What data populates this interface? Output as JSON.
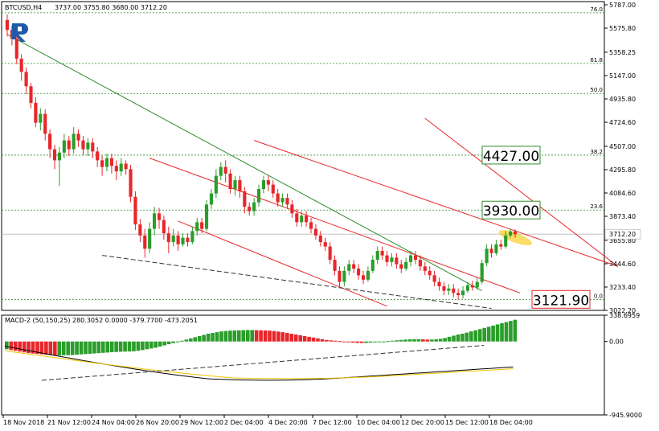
{
  "header": {
    "symbol": "BTCUSD,H4",
    "ohlc": "3737.00 3755.80 3680.00 3712.20"
  },
  "macd_header": "MACD-2 (50,150,25) 280.3052 0.0000 -379.7700 -473.2051",
  "colors": {
    "bull": "#2a9d2a",
    "bear": "#e8262a",
    "grid": "#2e8b2e",
    "channel": "#e8262a",
    "trend": "#2a8a2a",
    "support": "#333333",
    "signal": "#f2c200",
    "macd_line": "#000000",
    "price_tag_bg": "#ffffff",
    "highlight": "#f7c600",
    "logo": "#1f5aa8"
  },
  "chart_data": [
    {
      "type": "candlestick",
      "symbol": "BTCUSD",
      "timeframe": "H4",
      "ylim": [
        3022.2,
        5787.0
      ],
      "y_ticks": [
        "5787.00",
        "5575.80",
        "5358.25",
        "5147.00",
        "4935.80",
        "4724.60",
        "4507.00",
        "4295.80",
        "4084.60",
        "3873.40",
        "3655.80",
        "3444.60",
        "3233.40",
        "3022.20"
      ],
      "x_ticks": [
        "18 Nov 2018",
        "21 Nov 12:00",
        "24 Nov 04:00",
        "26 Nov 20:00",
        "29 Nov 12:00",
        "2 Dec 04:00",
        "4 Dec 20:00",
        "7 Dec 12:00",
        "10 Dec 04:00",
        "12 Dec 20:00",
        "15 Dec 12:00",
        "18 Dec 04:00"
      ],
      "fibonacci_levels": [
        {
          "label": "76.0",
          "price": 5715
        },
        {
          "label": "61.8",
          "price": 5257
        },
        {
          "label": "50.0",
          "price": 4985
        },
        {
          "label": "38.2",
          "price": 4427
        },
        {
          "label": "23.6",
          "price": 3930
        },
        {
          "label": "0.0",
          "price": 3121.9
        }
      ],
      "annotations": [
        {
          "text": "4427.00",
          "price": 4427.0,
          "style": "green"
        },
        {
          "text": "3930.00",
          "price": 3930.0,
          "style": "green"
        },
        {
          "text": "3121.90",
          "price": 3121.9,
          "style": "red"
        }
      ],
      "current_price": {
        "text": "3712.20",
        "price": 3712.2
      },
      "candles_approx": [
        [
          5650,
          5560,
          5700,
          5500
        ],
        [
          5560,
          5480,
          5600,
          5420
        ],
        [
          5480,
          5300,
          5520,
          5250
        ],
        [
          5300,
          5180,
          5340,
          5100
        ],
        [
          5180,
          5050,
          5220,
          4980
        ],
        [
          5050,
          4900,
          5080,
          4850
        ],
        [
          4900,
          4720,
          4950,
          4680
        ],
        [
          4720,
          4800,
          4850,
          4650
        ],
        [
          4800,
          4620,
          4840,
          4560
        ],
        [
          4620,
          4480,
          4660,
          4400
        ],
        [
          4480,
          4380,
          4520,
          4300
        ],
        [
          4380,
          4450,
          4500,
          4150
        ],
        [
          4450,
          4560,
          4620,
          4400
        ],
        [
          4560,
          4480,
          4600,
          4420
        ],
        [
          4480,
          4620,
          4680,
          4440
        ],
        [
          4620,
          4560,
          4660,
          4500
        ],
        [
          4560,
          4480,
          4600,
          4430
        ],
        [
          4480,
          4540,
          4580,
          4420
        ],
        [
          4540,
          4460,
          4580,
          4400
        ],
        [
          4460,
          4380,
          4500,
          4320
        ],
        [
          4380,
          4320,
          4420,
          4240
        ],
        [
          4320,
          4400,
          4440,
          4280
        ],
        [
          4400,
          4330,
          4440,
          4260
        ],
        [
          4330,
          4280,
          4380,
          4200
        ],
        [
          4280,
          4350,
          4400,
          4240
        ],
        [
          4350,
          4300,
          4380,
          4250
        ],
        [
          4300,
          4050,
          4340,
          4000
        ],
        [
          4050,
          3800,
          4100,
          3750
        ],
        [
          3800,
          3700,
          3850,
          3640
        ],
        [
          3700,
          3580,
          3760,
          3500
        ],
        [
          3580,
          3760,
          3820,
          3540
        ],
        [
          3760,
          3900,
          3960,
          3700
        ],
        [
          3900,
          3840,
          3950,
          3760
        ],
        [
          3840,
          3720,
          3880,
          3660
        ],
        [
          3720,
          3640,
          3780,
          3540
        ],
        [
          3640,
          3700,
          3760,
          3600
        ],
        [
          3700,
          3620,
          3740,
          3560
        ],
        [
          3620,
          3680,
          3720,
          3600
        ],
        [
          3680,
          3640,
          3720,
          3600
        ],
        [
          3640,
          3740,
          3780,
          3620
        ],
        [
          3740,
          3820,
          3860,
          3700
        ],
        [
          3820,
          3760,
          3860,
          3720
        ],
        [
          3760,
          3980,
          4020,
          3740
        ],
        [
          3980,
          4080,
          4120,
          3940
        ],
        [
          4080,
          4240,
          4300,
          4040
        ],
        [
          4240,
          4320,
          4360,
          4200
        ],
        [
          4320,
          4260,
          4380,
          4180
        ],
        [
          4260,
          4120,
          4300,
          4080
        ],
        [
          4120,
          4200,
          4240,
          4060
        ],
        [
          4200,
          4100,
          4240,
          4040
        ],
        [
          4100,
          3960,
          4140,
          3900
        ],
        [
          3960,
          3920,
          4000,
          3880
        ],
        [
          3920,
          4000,
          4040,
          3880
        ],
        [
          4000,
          4120,
          4160,
          3960
        ],
        [
          4120,
          4200,
          4240,
          4080
        ],
        [
          4200,
          4160,
          4240,
          4100
        ],
        [
          4160,
          4080,
          4200,
          4040
        ],
        [
          4080,
          4000,
          4120,
          3960
        ],
        [
          4000,
          4040,
          4080,
          3960
        ],
        [
          4040,
          3980,
          4080,
          3940
        ],
        [
          3980,
          3900,
          4020,
          3860
        ],
        [
          3900,
          3820,
          3940,
          3780
        ],
        [
          3820,
          3880,
          3920,
          3780
        ],
        [
          3880,
          3820,
          3920,
          3780
        ],
        [
          3820,
          3760,
          3860,
          3720
        ],
        [
          3760,
          3700,
          3800,
          3660
        ],
        [
          3700,
          3640,
          3740,
          3600
        ],
        [
          3640,
          3600,
          3680,
          3560
        ],
        [
          3600,
          3480,
          3640,
          3440
        ],
        [
          3480,
          3380,
          3520,
          3340
        ],
        [
          3380,
          3280,
          3420,
          3240
        ],
        [
          3280,
          3380,
          3420,
          3240
        ],
        [
          3380,
          3440,
          3480,
          3340
        ],
        [
          3440,
          3400,
          3480,
          3360
        ],
        [
          3400,
          3340,
          3440,
          3300
        ],
        [
          3340,
          3300,
          3380,
          3260
        ],
        [
          3300,
          3380,
          3420,
          3280
        ],
        [
          3380,
          3480,
          3520,
          3360
        ],
        [
          3480,
          3560,
          3600,
          3440
        ],
        [
          3560,
          3520,
          3600,
          3480
        ],
        [
          3520,
          3460,
          3560,
          3420
        ],
        [
          3460,
          3500,
          3540,
          3420
        ],
        [
          3500,
          3440,
          3540,
          3400
        ],
        [
          3440,
          3400,
          3480,
          3360
        ],
        [
          3400,
          3460,
          3500,
          3380
        ],
        [
          3460,
          3520,
          3560,
          3420
        ],
        [
          3520,
          3480,
          3560,
          3440
        ],
        [
          3480,
          3420,
          3520,
          3380
        ],
        [
          3420,
          3380,
          3460,
          3340
        ],
        [
          3380,
          3340,
          3420,
          3300
        ],
        [
          3340,
          3280,
          3380,
          3240
        ],
        [
          3280,
          3240,
          3320,
          3200
        ],
        [
          3240,
          3200,
          3280,
          3160
        ],
        [
          3200,
          3220,
          3260,
          3160
        ],
        [
          3220,
          3180,
          3260,
          3140
        ],
        [
          3180,
          3160,
          3220,
          3120
        ],
        [
          3160,
          3200,
          3240,
          3130
        ],
        [
          3200,
          3250,
          3280,
          3180
        ],
        [
          3250,
          3230,
          3290,
          3200
        ],
        [
          3230,
          3280,
          3320,
          3210
        ],
        [
          3280,
          3450,
          3480,
          3260
        ],
        [
          3450,
          3580,
          3620,
          3420
        ],
        [
          3580,
          3540,
          3620,
          3500
        ],
        [
          3540,
          3620,
          3660,
          3520
        ],
        [
          3620,
          3600,
          3660,
          3570
        ],
        [
          3600,
          3700,
          3740,
          3580
        ],
        [
          3700,
          3737,
          3760,
          3680
        ],
        [
          3737,
          3712.2,
          3755.8,
          3680
        ]
      ]
    },
    {
      "type": "bar",
      "name": "MACD-2 (50,150,25)",
      "ylim": [
        -945.9,
        338.6959
      ],
      "y_ticks": [
        "338.6959",
        "0.00",
        "-945.9000"
      ],
      "histogram_approx": [
        -100,
        -110,
        -120,
        -130,
        -140,
        -150,
        -155,
        -160,
        -165,
        -170,
        -175,
        -180,
        -180,
        -178,
        -176,
        -174,
        -170,
        -166,
        -162,
        -158,
        -154,
        -150,
        -146,
        -142,
        -138,
        -135,
        -132,
        -130,
        -128,
        -126,
        -120,
        -110,
        -100,
        -90,
        -80,
        -65,
        -50,
        -35,
        -20,
        -5,
        10,
        25,
        40,
        55,
        70,
        85,
        100,
        110,
        120,
        130,
        135,
        140,
        142,
        144,
        146,
        148,
        148,
        146,
        144,
        142,
        140,
        135,
        128,
        120,
        110,
        100,
        90,
        80,
        70,
        60,
        50,
        40,
        30,
        20,
        15,
        10,
        5,
        -5,
        -10,
        -15,
        -18,
        -20,
        -18,
        -15,
        -10,
        -8,
        -5,
        5,
        10,
        15,
        20,
        25,
        28,
        30,
        30,
        28,
        25,
        25,
        28,
        35,
        45,
        60,
        75,
        90,
        100,
        115,
        130,
        145,
        160,
        175,
        190,
        205,
        220,
        235,
        250,
        265,
        280
      ]
    }
  ]
}
